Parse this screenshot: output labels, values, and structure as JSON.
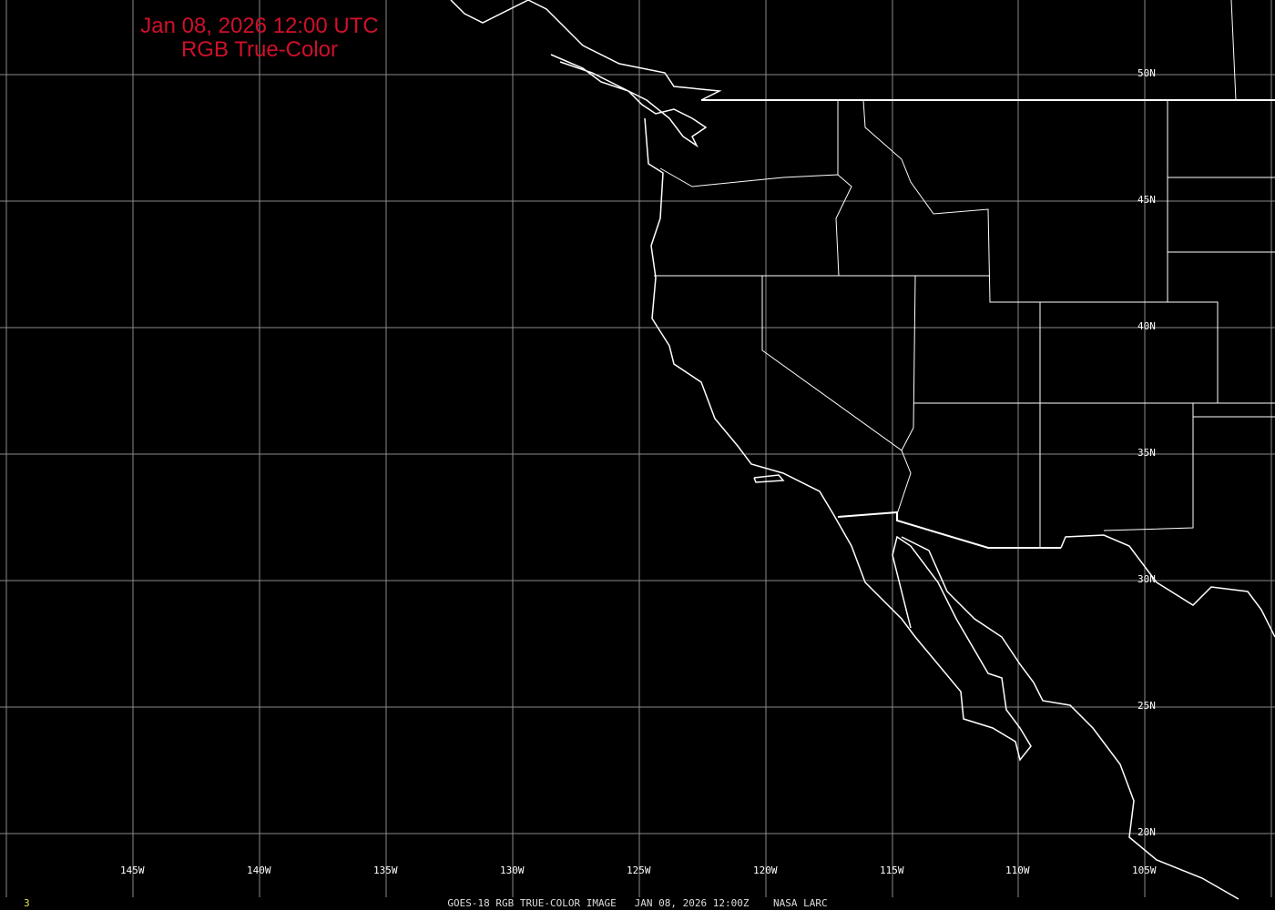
{
  "title": {
    "line1": "Jan 08, 2026 12:00 UTC",
    "line2": "RGB True-Color"
  },
  "lon_labels": [
    "145W",
    "140W",
    "135W",
    "130W",
    "125W",
    "120W",
    "115W",
    "110W",
    "105W"
  ],
  "lat_labels": [
    "50N",
    "45N",
    "40N",
    "35N",
    "30N",
    "25N",
    "20N"
  ],
  "footer": "GOES-18 RGB TRUE-COLOR IMAGE   JAN 08, 2026 12:00Z    NASA LARC",
  "frame_number": "3",
  "colors": {
    "background": "#000000",
    "title": "#d0102a",
    "grid": "#8a8a8a",
    "coastline": "#ffffff",
    "frame_number": "#e8e050"
  }
}
